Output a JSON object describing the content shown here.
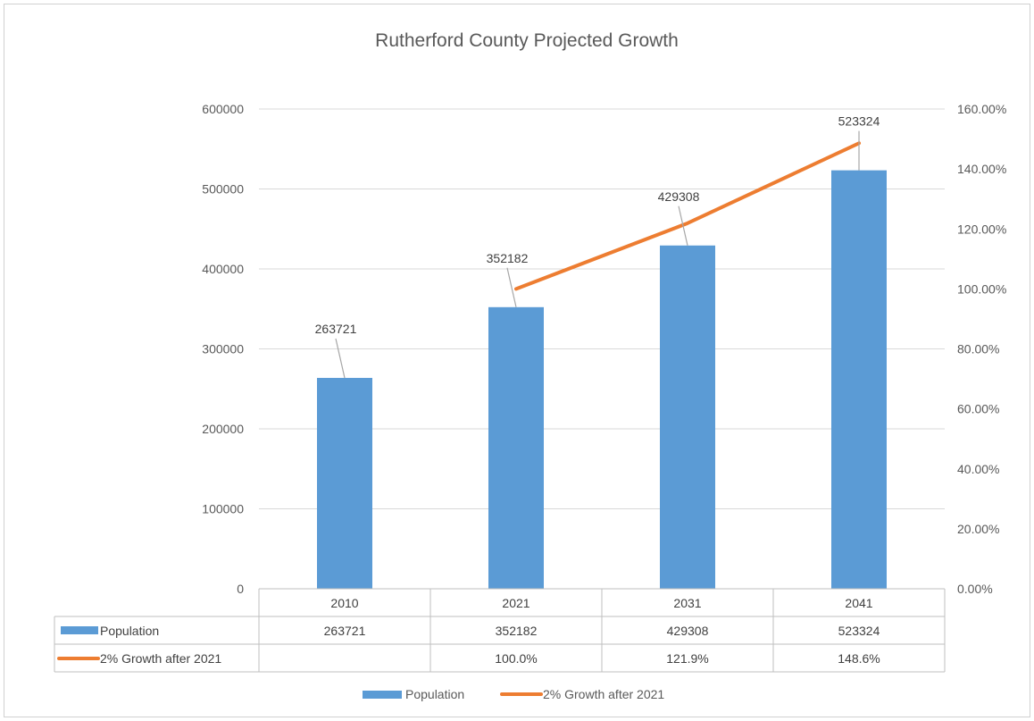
{
  "chart_data": {
    "type": "bar",
    "title": "Rutherford County Projected Growth",
    "categories": [
      "2010",
      "2021",
      "2031",
      "2041"
    ],
    "series": [
      {
        "name": "Population",
        "type": "bar",
        "axis": "left",
        "values": [
          263721,
          352182,
          429308,
          523324
        ],
        "data_labels": [
          "263721",
          "352182",
          "429308",
          "523324"
        ],
        "color": "#5b9bd5"
      },
      {
        "name": "2% Growth after 2021",
        "type": "line",
        "axis": "right",
        "values": [
          null,
          100.0,
          121.9,
          148.6
        ],
        "color": "#ed7d31"
      }
    ],
    "y_left": {
      "range": [
        0,
        600000
      ],
      "ticks": [
        "0",
        "100000",
        "200000",
        "300000",
        "400000",
        "500000",
        "600000"
      ]
    },
    "y_right": {
      "range": [
        0,
        160
      ],
      "ticks": [
        "0.00%",
        "20.00%",
        "40.00%",
        "60.00%",
        "80.00%",
        "100.00%",
        "120.00%",
        "140.00%",
        "160.00%"
      ]
    },
    "data_table": {
      "rows": [
        {
          "label": "Population",
          "cells": [
            "263721",
            "352182",
            "429308",
            "523324"
          ]
        },
        {
          "label": "2% Growth after 2021",
          "cells": [
            "",
            "100.0%",
            "121.9%",
            "148.6%"
          ]
        }
      ]
    },
    "grid": true,
    "legend_position": "bottom"
  }
}
